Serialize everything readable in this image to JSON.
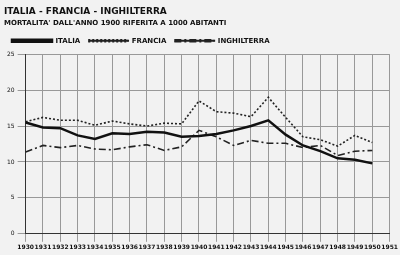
{
  "chart_data": {
    "type": "line",
    "title": "ITALIA - FRANCIA - INGHILTERRA",
    "subtitle": "MORTALITA' DALL'ANNO 1900 RIFERITA A 1000 ABITANTI",
    "categories": [
      "1930",
      "1931",
      "1932",
      "1933",
      "1934",
      "1935",
      "1936",
      "1937",
      "1938",
      "1939",
      "1940",
      "1941",
      "1942",
      "1943",
      "1944",
      "1945",
      "1946",
      "1947",
      "1948",
      "1949",
      "1950",
      "1951"
    ],
    "series": [
      {
        "name": "ITALIA",
        "color": "#111111",
        "line_style": "solid",
        "values": [
          15.5,
          14.8,
          14.7,
          13.7,
          13.2,
          14.0,
          13.9,
          14.2,
          14.1,
          13.5,
          13.6,
          13.9,
          14.4,
          15.0,
          15.8,
          13.8,
          12.3,
          11.5,
          10.5,
          10.3,
          9.8,
          null
        ]
      },
      {
        "name": "FRANCIA",
        "color": "#222222",
        "line_style": "dotted",
        "values": [
          15.6,
          16.2,
          15.8,
          15.8,
          15.1,
          15.7,
          15.3,
          15.0,
          15.4,
          15.3,
          18.5,
          17.0,
          16.8,
          16.3,
          19.0,
          16.2,
          13.5,
          13.1,
          12.2,
          13.7,
          12.7,
          null
        ]
      },
      {
        "name": "INGHILTERRA",
        "color": "#222222",
        "line_style": "dashdot",
        "values": [
          11.4,
          12.3,
          12.0,
          12.3,
          11.8,
          11.7,
          12.1,
          12.4,
          11.6,
          12.1,
          14.4,
          13.5,
          12.3,
          13.0,
          12.6,
          12.6,
          12.0,
          12.3,
          10.9,
          11.5,
          11.6,
          null
        ]
      }
    ],
    "ylim": [
      0,
      25
    ],
    "yticks": [
      0,
      5,
      10,
      15,
      20,
      25
    ],
    "grid": true,
    "legend": "top"
  }
}
